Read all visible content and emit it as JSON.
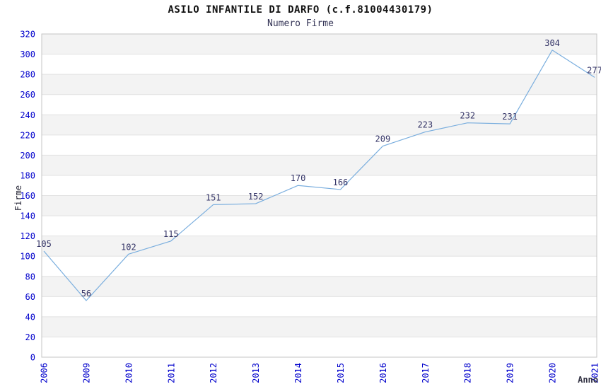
{
  "chart_data": {
    "type": "line",
    "title": "ASILO INFANTILE DI DARFO (c.f.81004430179)",
    "subtitle": "Numero Firme",
    "xlabel": "Anno",
    "ylabel": "Firme",
    "categories": [
      "2006",
      "2009",
      "2010",
      "2011",
      "2012",
      "2013",
      "2014",
      "2015",
      "2016",
      "2017",
      "2018",
      "2019",
      "2020",
      "2021"
    ],
    "values": [
      105,
      56,
      102,
      115,
      151,
      152,
      170,
      166,
      209,
      223,
      232,
      231,
      304,
      277
    ],
    "ylim": [
      0,
      320
    ],
    "ytick_step": 20,
    "grid": true,
    "legend": false,
    "layout_hints": {
      "x_tick_rotation_deg": -90,
      "alternating_bands": true,
      "data_labels_shown": true
    },
    "colors": {
      "line": "#7aaede",
      "tick_label": "#0000cc",
      "data_label": "#333366",
      "band": "#f3f3f3",
      "gridline": "#e2e2e2",
      "plot_border": "#c4c4c4",
      "title": "#111111",
      "subtitle": "#333355",
      "ylabel_color": "#222233",
      "xlabel_color": "#333344"
    }
  }
}
